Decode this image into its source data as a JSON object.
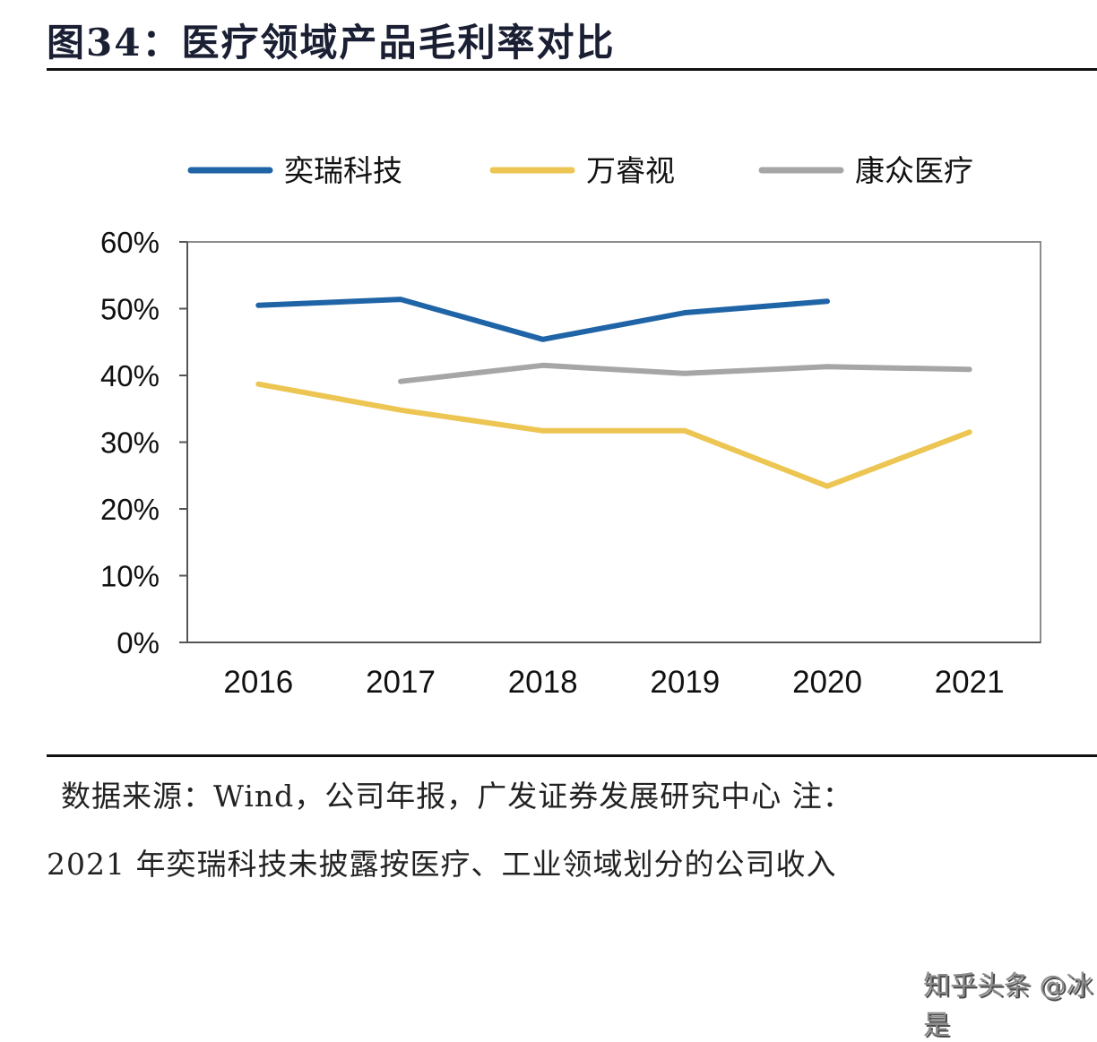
{
  "header": {
    "title": "图34：医疗领域产品毛利率对比"
  },
  "footer": {
    "source": "数据来源：Wind，公司年报，广发证券发展研究中心 注：",
    "note": "2021 年奕瑞科技未披露按医疗、工业领域划分的公司收入",
    "watermark": "知乎头条 @冰是"
  },
  "chart_data": {
    "type": "line",
    "title": "图34：医疗领域产品毛利率对比",
    "xlabel": "",
    "ylabel": "",
    "categories": [
      "2016",
      "2017",
      "2018",
      "2019",
      "2020",
      "2021"
    ],
    "ylim": [
      0,
      60
    ],
    "yticks": [
      0,
      10,
      20,
      30,
      40,
      50,
      60
    ],
    "ytick_labels": [
      "0%",
      "10%",
      "20%",
      "30%",
      "40%",
      "50%",
      "60%"
    ],
    "grid": false,
    "legend_position": "top",
    "series": [
      {
        "name": "奕瑞科技",
        "color": "#1f64a6",
        "values": [
          50.5,
          51.4,
          45.4,
          49.4,
          51.1,
          null
        ]
      },
      {
        "name": "万睿视",
        "color": "#ecc552",
        "values": [
          38.7,
          34.8,
          31.7,
          31.7,
          23.4,
          31.5
        ]
      },
      {
        "name": "康众医疗",
        "color": "#a6a6a6",
        "values": [
          null,
          39.1,
          41.5,
          40.3,
          41.3,
          40.9
        ]
      }
    ]
  }
}
